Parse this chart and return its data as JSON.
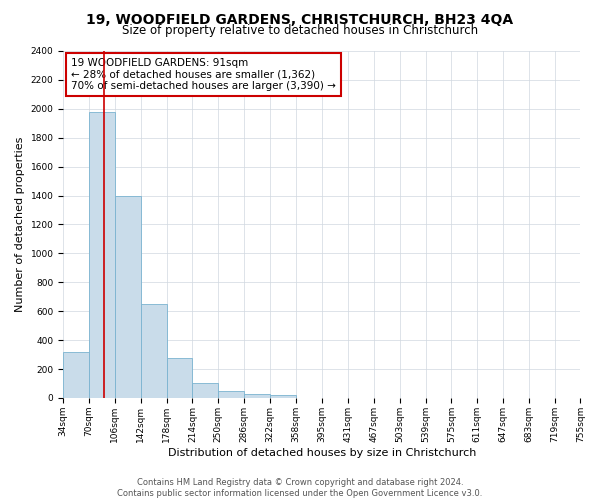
{
  "title": "19, WOODFIELD GARDENS, CHRISTCHURCH, BH23 4QA",
  "subtitle": "Size of property relative to detached houses in Christchurch",
  "xlabel": "Distribution of detached houses by size in Christchurch",
  "ylabel": "Number of detached properties",
  "footer_line1": "Contains HM Land Registry data © Crown copyright and database right 2024.",
  "footer_line2": "Contains public sector information licensed under the Open Government Licence v3.0.",
  "annotation_line1": "19 WOODFIELD GARDENS: 91sqm",
  "annotation_line2": "← 28% of detached houses are smaller (1,362)",
  "annotation_line3": "70% of semi-detached houses are larger (3,390) →",
  "bar_edges": [
    34,
    70,
    106,
    142,
    178,
    214,
    250,
    286,
    322,
    358,
    395,
    431,
    467,
    503,
    539,
    575,
    611,
    647,
    683,
    719,
    755
  ],
  "bar_heights": [
    320,
    1975,
    1400,
    650,
    275,
    100,
    50,
    30,
    20,
    0,
    0,
    0,
    0,
    0,
    0,
    0,
    0,
    0,
    0,
    0
  ],
  "tick_labels": [
    "34sqm",
    "70sqm",
    "106sqm",
    "142sqm",
    "178sqm",
    "214sqm",
    "250sqm",
    "286sqm",
    "322sqm",
    "358sqm",
    "395sqm",
    "431sqm",
    "467sqm",
    "503sqm",
    "539sqm",
    "575sqm",
    "611sqm",
    "647sqm",
    "683sqm",
    "719sqm",
    "755sqm"
  ],
  "bar_color": "#c9dcea",
  "bar_edge_color": "#7ab3d0",
  "redline_x": 91,
  "ylim": [
    0,
    2400
  ],
  "yticks": [
    0,
    200,
    400,
    600,
    800,
    1000,
    1200,
    1400,
    1600,
    1800,
    2000,
    2200,
    2400
  ],
  "bg_color": "#ffffff",
  "grid_color": "#d0d8e0",
  "annotation_box_color": "#cc0000",
  "title_fontsize": 10,
  "subtitle_fontsize": 8.5,
  "axis_label_fontsize": 8,
  "tick_fontsize": 6.5,
  "footer_fontsize": 6,
  "annotation_fontsize": 7.5
}
